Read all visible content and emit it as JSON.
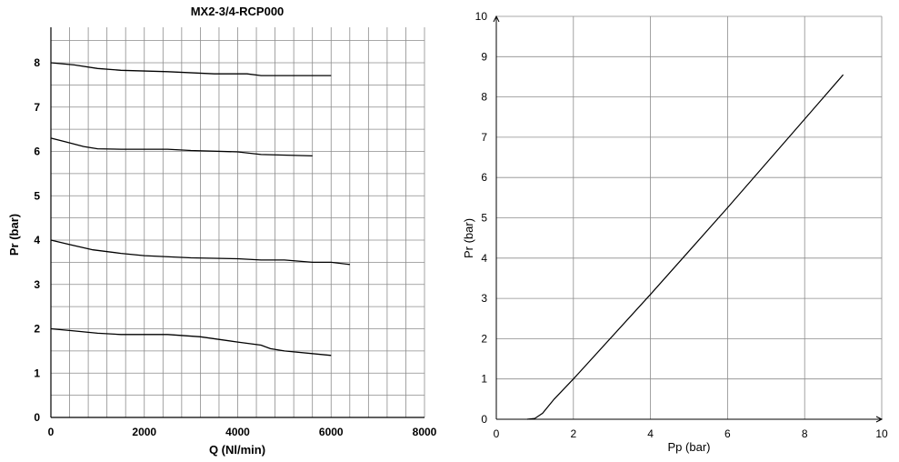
{
  "chart_data": [
    {
      "type": "line",
      "title": "MX2-3/4-RCP000",
      "xlabel": "Q (Nl/min)",
      "ylabel": "Pr (bar)",
      "xlim": [
        0,
        8000
      ],
      "ylim": [
        0,
        8.8
      ],
      "xticks": [
        "0",
        "2000",
        "4000",
        "6000",
        "8000"
      ],
      "yticks": [
        "0",
        "1",
        "2",
        "3",
        "4",
        "5",
        "6",
        "7",
        "8"
      ],
      "grid": true,
      "line_color": "#000000",
      "series": [
        {
          "x": [
            0,
            500,
            1000,
            1500,
            2500,
            3500,
            4200,
            4500,
            5000,
            6000
          ],
          "y": [
            8.0,
            7.95,
            7.87,
            7.83,
            7.8,
            7.75,
            7.75,
            7.71,
            7.71,
            7.71
          ]
        },
        {
          "x": [
            0,
            300,
            700,
            1000,
            1500,
            2500,
            3000,
            4000,
            4500,
            5600
          ],
          "y": [
            6.3,
            6.22,
            6.11,
            6.06,
            6.05,
            6.05,
            6.02,
            5.99,
            5.93,
            5.9
          ]
        },
        {
          "x": [
            0,
            400,
            900,
            1500,
            2000,
            3000,
            4000,
            4500,
            5000,
            5600,
            6000,
            6400
          ],
          "y": [
            4.0,
            3.9,
            3.78,
            3.7,
            3.65,
            3.6,
            3.58,
            3.55,
            3.55,
            3.5,
            3.5,
            3.45
          ]
        },
        {
          "x": [
            0,
            500,
            1000,
            1500,
            2500,
            3200,
            4000,
            4500,
            4700,
            5000,
            6000
          ],
          "y": [
            2.0,
            1.95,
            1.9,
            1.87,
            1.87,
            1.82,
            1.7,
            1.63,
            1.55,
            1.5,
            1.4
          ]
        }
      ]
    },
    {
      "type": "line",
      "title": "",
      "xlabel": "Pp (bar)",
      "ylabel": "Pr (bar)",
      "xlim": [
        0,
        10
      ],
      "ylim": [
        0,
        10
      ],
      "xticks": [
        "0",
        "2",
        "4",
        "6",
        "8",
        "10"
      ],
      "yticks": [
        "0",
        "1",
        "2",
        "3",
        "4",
        "5",
        "6",
        "7",
        "8",
        "9",
        "10"
      ],
      "grid": true,
      "line_color": "#000000",
      "series": [
        {
          "x": [
            0.8,
            1.0,
            1.2,
            1.5,
            2.0,
            4.0,
            6.0,
            8.0,
            9.0
          ],
          "y": [
            0,
            0.02,
            0.15,
            0.5,
            1.0,
            3.1,
            5.25,
            7.45,
            8.55
          ]
        }
      ]
    }
  ]
}
